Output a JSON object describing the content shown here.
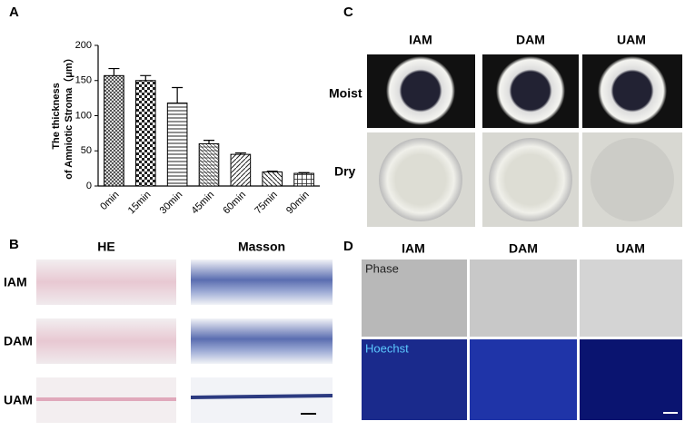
{
  "chart_data": {
    "type": "bar",
    "ylabel": [
      "The thickness",
      "of Amniotic  Stroma（μm）"
    ],
    "categories": [
      "0min",
      "15min",
      "30min",
      "45min",
      "60min",
      "75min",
      "90min"
    ],
    "values": [
      157,
      150,
      118,
      60,
      45,
      20,
      18
    ],
    "errors": [
      10,
      7,
      22,
      5,
      2,
      1,
      1
    ],
    "ylim": [
      0,
      200
    ],
    "yticks": [
      0,
      50,
      100,
      150,
      200
    ],
    "color": "#000000"
  },
  "panels": {
    "labels": [
      "A",
      "B",
      "C",
      "D"
    ],
    "B": {
      "columns": [
        "HE",
        "Masson"
      ],
      "rows": [
        "IAM",
        "DAM",
        "UAM"
      ]
    },
    "C": {
      "columns": [
        "IAM",
        "DAM",
        "UAM"
      ],
      "rows": [
        "Moist",
        "Dry"
      ]
    },
    "D": {
      "columns": [
        "IAM",
        "DAM",
        "UAM"
      ],
      "image_labels": [
        "Phase",
        "Hoechst"
      ]
    }
  }
}
